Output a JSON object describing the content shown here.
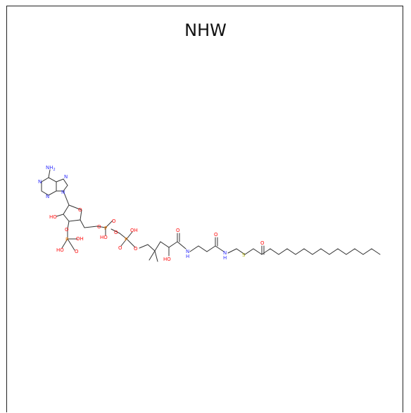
{
  "molecule": {
    "name": "NHW",
    "colors": {
      "bond": "#333333",
      "nitrogen": "#3333ff",
      "oxygen": "#ff0d0d",
      "phosphorus": "#ff8000",
      "sulfur": "#b2b200"
    },
    "labels": {
      "nh2": "NH",
      "nh2_sub": "2",
      "n_ring": "N",
      "oh": "OH",
      "ho": "HO",
      "o": "O",
      "p": "P",
      "s": "S",
      "nh": "N",
      "h": "H"
    }
  }
}
